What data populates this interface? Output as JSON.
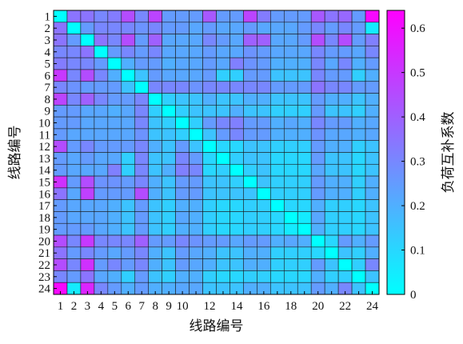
{
  "chart_data": {
    "type": "heatmap",
    "title": "",
    "xlabel": "线路编号",
    "ylabel": "线路编号",
    "colorbar_label": "负荷互补系数",
    "x_tick_labels": [
      "1",
      "2",
      "3",
      "4",
      "5",
      "6",
      "7",
      "8",
      "9",
      "10",
      "",
      "12",
      "",
      "14",
      "",
      "16",
      "",
      "18",
      "",
      "20",
      "",
      "22",
      "",
      "24"
    ],
    "y_tick_labels": [
      "1",
      "2",
      "3",
      "4",
      "5",
      "6",
      "7",
      "8",
      "9",
      "10",
      "11",
      "12",
      "13",
      "14",
      "15",
      "16",
      "17",
      "18",
      "19",
      "20",
      "21",
      "22",
      "23",
      "24"
    ],
    "colorbar_ticks": [
      "0",
      "0.1",
      "0.2",
      "0.3",
      "0.4",
      "0.5",
      "0.6"
    ],
    "colorbar_range": [
      0,
      0.64
    ],
    "colormap": [
      "#00ffff",
      "#ff00ff"
    ],
    "grid": true,
    "values": [
      [
        0.0,
        0.35,
        0.35,
        0.3,
        0.33,
        0.45,
        0.3,
        0.47,
        0.25,
        0.25,
        0.25,
        0.42,
        0.25,
        0.25,
        0.47,
        0.33,
        0.25,
        0.25,
        0.25,
        0.42,
        0.35,
        0.38,
        0.25,
        0.62
      ],
      [
        0.35,
        0.0,
        0.25,
        0.3,
        0.3,
        0.3,
        0.27,
        0.3,
        0.25,
        0.25,
        0.22,
        0.25,
        0.22,
        0.22,
        0.25,
        0.22,
        0.22,
        0.22,
        0.25,
        0.3,
        0.25,
        0.3,
        0.25,
        0.05
      ],
      [
        0.35,
        0.25,
        0.0,
        0.35,
        0.3,
        0.45,
        0.25,
        0.4,
        0.22,
        0.22,
        0.22,
        0.3,
        0.25,
        0.22,
        0.4,
        0.4,
        0.22,
        0.22,
        0.25,
        0.45,
        0.3,
        0.45,
        0.25,
        0.32
      ],
      [
        0.3,
        0.3,
        0.35,
        0.0,
        0.25,
        0.3,
        0.25,
        0.3,
        0.22,
        0.22,
        0.22,
        0.25,
        0.22,
        0.22,
        0.27,
        0.25,
        0.22,
        0.22,
        0.22,
        0.3,
        0.25,
        0.25,
        0.22,
        0.3
      ],
      [
        0.33,
        0.3,
        0.3,
        0.25,
        0.0,
        0.2,
        0.25,
        0.25,
        0.2,
        0.22,
        0.22,
        0.25,
        0.22,
        0.32,
        0.27,
        0.25,
        0.2,
        0.2,
        0.2,
        0.3,
        0.22,
        0.3,
        0.2,
        0.25
      ],
      [
        0.5,
        0.3,
        0.45,
        0.3,
        0.2,
        0.0,
        0.15,
        0.25,
        0.22,
        0.22,
        0.22,
        0.25,
        0.12,
        0.12,
        0.25,
        0.25,
        0.15,
        0.15,
        0.15,
        0.3,
        0.25,
        0.25,
        0.12,
        0.2
      ],
      [
        0.3,
        0.27,
        0.25,
        0.25,
        0.25,
        0.15,
        0.0,
        0.3,
        0.3,
        0.3,
        0.27,
        0.3,
        0.3,
        0.3,
        0.3,
        0.3,
        0.25,
        0.25,
        0.25,
        0.35,
        0.3,
        0.3,
        0.25,
        0.25
      ],
      [
        0.47,
        0.3,
        0.4,
        0.3,
        0.25,
        0.25,
        0.3,
        0.0,
        0.12,
        0.15,
        0.15,
        0.2,
        0.15,
        0.15,
        0.2,
        0.2,
        0.15,
        0.15,
        0.15,
        0.25,
        0.2,
        0.2,
        0.15,
        0.2
      ],
      [
        0.25,
        0.25,
        0.22,
        0.22,
        0.2,
        0.22,
        0.3,
        0.12,
        0.0,
        0.12,
        0.15,
        0.15,
        0.15,
        0.2,
        0.15,
        0.15,
        0.12,
        0.12,
        0.12,
        0.25,
        0.15,
        0.15,
        0.12,
        0.2
      ],
      [
        0.25,
        0.25,
        0.22,
        0.22,
        0.22,
        0.22,
        0.3,
        0.15,
        0.12,
        0.0,
        0.12,
        0.25,
        0.3,
        0.32,
        0.25,
        0.25,
        0.2,
        0.22,
        0.2,
        0.3,
        0.25,
        0.25,
        0.2,
        0.22
      ],
      [
        0.25,
        0.22,
        0.22,
        0.22,
        0.22,
        0.22,
        0.27,
        0.15,
        0.15,
        0.12,
        0.0,
        0.15,
        0.25,
        0.3,
        0.25,
        0.25,
        0.2,
        0.2,
        0.2,
        0.27,
        0.22,
        0.22,
        0.2,
        0.22
      ],
      [
        0.45,
        0.25,
        0.3,
        0.25,
        0.25,
        0.25,
        0.3,
        0.2,
        0.15,
        0.25,
        0.15,
        0.0,
        0.1,
        0.1,
        0.15,
        0.15,
        0.12,
        0.12,
        0.12,
        0.25,
        0.2,
        0.2,
        0.12,
        0.15
      ],
      [
        0.25,
        0.22,
        0.25,
        0.22,
        0.22,
        0.12,
        0.3,
        0.15,
        0.15,
        0.3,
        0.25,
        0.1,
        0.0,
        0.12,
        0.15,
        0.15,
        0.1,
        0.1,
        0.1,
        0.25,
        0.15,
        0.15,
        0.1,
        0.15
      ],
      [
        0.25,
        0.22,
        0.22,
        0.22,
        0.32,
        0.12,
        0.3,
        0.15,
        0.2,
        0.32,
        0.3,
        0.1,
        0.12,
        0.0,
        0.12,
        0.15,
        0.1,
        0.1,
        0.1,
        0.22,
        0.15,
        0.15,
        0.1,
        0.15
      ],
      [
        0.52,
        0.25,
        0.45,
        0.27,
        0.27,
        0.25,
        0.3,
        0.2,
        0.15,
        0.25,
        0.25,
        0.15,
        0.15,
        0.12,
        0.0,
        0.15,
        0.12,
        0.12,
        0.12,
        0.25,
        0.2,
        0.2,
        0.12,
        0.2
      ],
      [
        0.35,
        0.22,
        0.48,
        0.25,
        0.25,
        0.25,
        0.45,
        0.2,
        0.15,
        0.25,
        0.25,
        0.15,
        0.15,
        0.15,
        0.15,
        0.0,
        0.12,
        0.12,
        0.12,
        0.25,
        0.2,
        0.2,
        0.12,
        0.2
      ],
      [
        0.25,
        0.22,
        0.22,
        0.22,
        0.2,
        0.15,
        0.25,
        0.15,
        0.12,
        0.2,
        0.2,
        0.12,
        0.1,
        0.1,
        0.12,
        0.12,
        0.0,
        0.1,
        0.1,
        0.2,
        0.12,
        0.12,
        0.1,
        0.15
      ],
      [
        0.25,
        0.22,
        0.22,
        0.22,
        0.2,
        0.15,
        0.25,
        0.15,
        0.12,
        0.22,
        0.2,
        0.12,
        0.1,
        0.1,
        0.12,
        0.12,
        0.1,
        0.0,
        0.05,
        0.22,
        0.12,
        0.12,
        0.1,
        0.15
      ],
      [
        0.25,
        0.25,
        0.25,
        0.22,
        0.2,
        0.15,
        0.25,
        0.15,
        0.12,
        0.2,
        0.2,
        0.12,
        0.1,
        0.1,
        0.12,
        0.12,
        0.1,
        0.05,
        0.0,
        0.2,
        0.12,
        0.12,
        0.1,
        0.15
      ],
      [
        0.45,
        0.3,
        0.5,
        0.3,
        0.3,
        0.3,
        0.4,
        0.25,
        0.25,
        0.3,
        0.27,
        0.25,
        0.25,
        0.22,
        0.25,
        0.25,
        0.2,
        0.22,
        0.2,
        0.0,
        0.1,
        0.25,
        0.2,
        0.25
      ],
      [
        0.35,
        0.25,
        0.3,
        0.25,
        0.22,
        0.25,
        0.3,
        0.2,
        0.15,
        0.25,
        0.22,
        0.2,
        0.15,
        0.15,
        0.2,
        0.2,
        0.12,
        0.12,
        0.12,
        0.1,
        0.0,
        0.15,
        0.12,
        0.2
      ],
      [
        0.45,
        0.3,
        0.52,
        0.25,
        0.3,
        0.25,
        0.3,
        0.2,
        0.15,
        0.25,
        0.22,
        0.2,
        0.15,
        0.15,
        0.2,
        0.2,
        0.12,
        0.12,
        0.12,
        0.25,
        0.15,
        0.0,
        0.12,
        0.3
      ],
      [
        0.3,
        0.25,
        0.35,
        0.22,
        0.2,
        0.12,
        0.25,
        0.15,
        0.12,
        0.2,
        0.2,
        0.12,
        0.1,
        0.1,
        0.12,
        0.12,
        0.1,
        0.1,
        0.1,
        0.2,
        0.12,
        0.12,
        0.0,
        0.15
      ],
      [
        0.62,
        0.05,
        0.55,
        0.3,
        0.25,
        0.2,
        0.25,
        0.2,
        0.2,
        0.22,
        0.22,
        0.15,
        0.15,
        0.15,
        0.2,
        0.2,
        0.15,
        0.15,
        0.15,
        0.25,
        0.2,
        0.3,
        0.15,
        0.0
      ]
    ]
  }
}
